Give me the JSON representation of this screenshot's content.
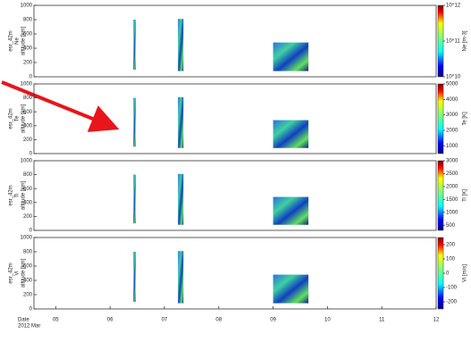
{
  "chart_data": [
    {
      "type": "segments",
      "ylabel": [
        "esr_42m",
        "Ne",
        "altitude [km]"
      ],
      "ylim": [
        0,
        1000
      ],
      "yticks": [
        0,
        200,
        400,
        600,
        800,
        1000
      ],
      "xlim": [
        4.6,
        12.0
      ],
      "xticks": [],
      "segments": [
        {
          "x": [
            6.43,
            6.47
          ],
          "y": [
            100,
            800
          ]
        },
        {
          "x": [
            7.25,
            7.35
          ],
          "y": [
            80,
            810
          ]
        },
        {
          "x": [
            9.0,
            9.65
          ],
          "y": [
            80,
            480
          ]
        }
      ],
      "colorbar": {
        "label": "Ne [m-3]",
        "log": true,
        "clim": [
          10000000000,
          1000000000000
        ],
        "ticks": [
          {
            "value": 10000000000,
            "label": "10^10"
          },
          {
            "value": 100000000000,
            "label": "10^11"
          },
          {
            "value": 1000000000000,
            "label": "10^12"
          }
        ]
      }
    },
    {
      "type": "segments",
      "ylabel": [
        "esr_42m",
        "Te",
        "altitude [km]"
      ],
      "ylim": [
        0,
        1000
      ],
      "yticks": [
        0,
        200,
        400,
        600,
        800,
        1000
      ],
      "xlim": [
        4.6,
        12.0
      ],
      "xticks": [],
      "segments": [
        {
          "x": [
            6.43,
            6.47
          ],
          "y": [
            100,
            800
          ]
        },
        {
          "x": [
            7.25,
            7.35
          ],
          "y": [
            80,
            810
          ]
        },
        {
          "x": [
            9.0,
            9.65
          ],
          "y": [
            80,
            480
          ]
        }
      ],
      "colorbar": {
        "label": "Te [K]",
        "log": false,
        "clim": [
          500,
          5000
        ],
        "ticks": [
          1000,
          2000,
          3000,
          4000,
          5000
        ]
      }
    },
    {
      "type": "segments",
      "ylabel": [
        "esr_42m",
        "Ti",
        "altitude [km]"
      ],
      "ylim": [
        0,
        1000
      ],
      "yticks": [
        0,
        200,
        400,
        600,
        800,
        1000
      ],
      "xlim": [
        4.6,
        12.0
      ],
      "xticks": [],
      "segments": [
        {
          "x": [
            6.43,
            6.47
          ],
          "y": [
            100,
            800
          ]
        },
        {
          "x": [
            7.25,
            7.35
          ],
          "y": [
            80,
            810
          ]
        },
        {
          "x": [
            9.0,
            9.65
          ],
          "y": [
            80,
            480
          ]
        }
      ],
      "colorbar": {
        "label": "Ti [K]",
        "log": false,
        "clim": [
          300,
          3000
        ],
        "ticks": [
          500,
          1000,
          1500,
          2000,
          2500,
          3000
        ]
      }
    },
    {
      "type": "segments",
      "ylabel": [
        "esr_42m",
        "Vi",
        "altitude [km]"
      ],
      "ylim": [
        0,
        1000
      ],
      "yticks": [
        0,
        200,
        400,
        600,
        800,
        1000
      ],
      "xlim": [
        4.6,
        12.0
      ],
      "xticks": [
        {
          "value": 5,
          "label": "05"
        },
        {
          "value": 6,
          "label": "06"
        },
        {
          "value": 7,
          "label": "07"
        },
        {
          "value": 8,
          "label": "08"
        },
        {
          "value": 9,
          "label": "09"
        },
        10,
        11,
        12
      ],
      "xlabel": [
        "Date",
        "2012 Mar"
      ],
      "segments": [
        {
          "x": [
            6.43,
            6.47
          ],
          "y": [
            100,
            800
          ]
        },
        {
          "x": [
            7.25,
            7.35
          ],
          "y": [
            80,
            810
          ]
        },
        {
          "x": [
            9.0,
            9.65
          ],
          "y": [
            80,
            480
          ]
        }
      ],
      "colorbar": {
        "label": "Vi [m/s]",
        "log": false,
        "clim": [
          -250,
          250
        ],
        "ticks": [
          -200,
          -100,
          0,
          100,
          200
        ]
      }
    }
  ]
}
